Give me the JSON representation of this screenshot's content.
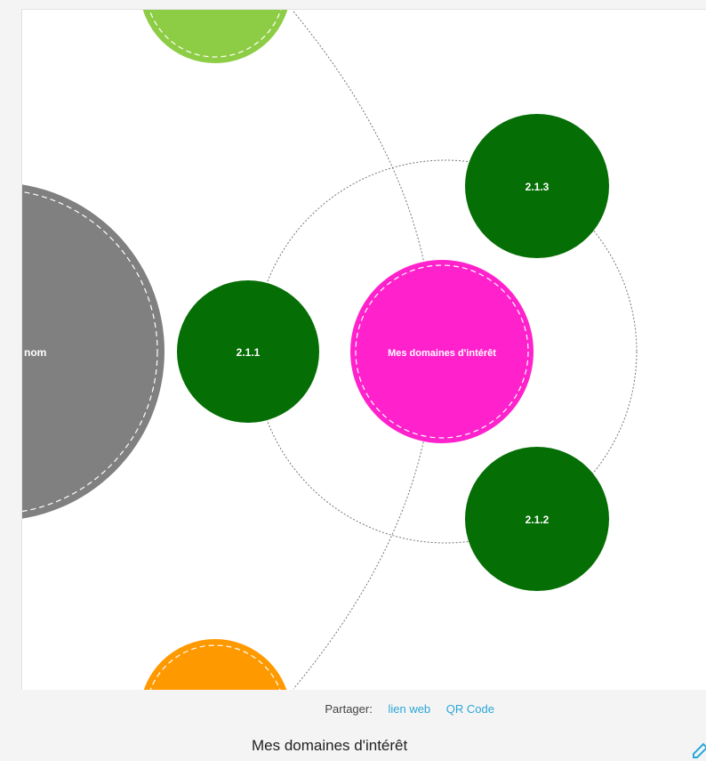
{
  "diagram": {
    "center": {
      "label": "Mes domaines d'intérêt",
      "color": "#ff22cc"
    },
    "children": [
      {
        "label": "2.1.1",
        "color": "#056e05"
      },
      {
        "label": "2.1.2",
        "color": "#056e05"
      },
      {
        "label": "2.1.3",
        "color": "#056e05"
      }
    ],
    "neighbors": [
      {
        "label": "nom",
        "color": "#808080"
      },
      {
        "label": "",
        "color": "#8dcd45"
      },
      {
        "label": "",
        "color": "#ff9900"
      }
    ],
    "link_color": "#777777"
  },
  "footer": {
    "share_label": "Partager:",
    "share_web": "lien web",
    "share_qr": "QR Code",
    "title": "Mes domaines d'intérêt",
    "edit_icon": "pencil-icon"
  }
}
